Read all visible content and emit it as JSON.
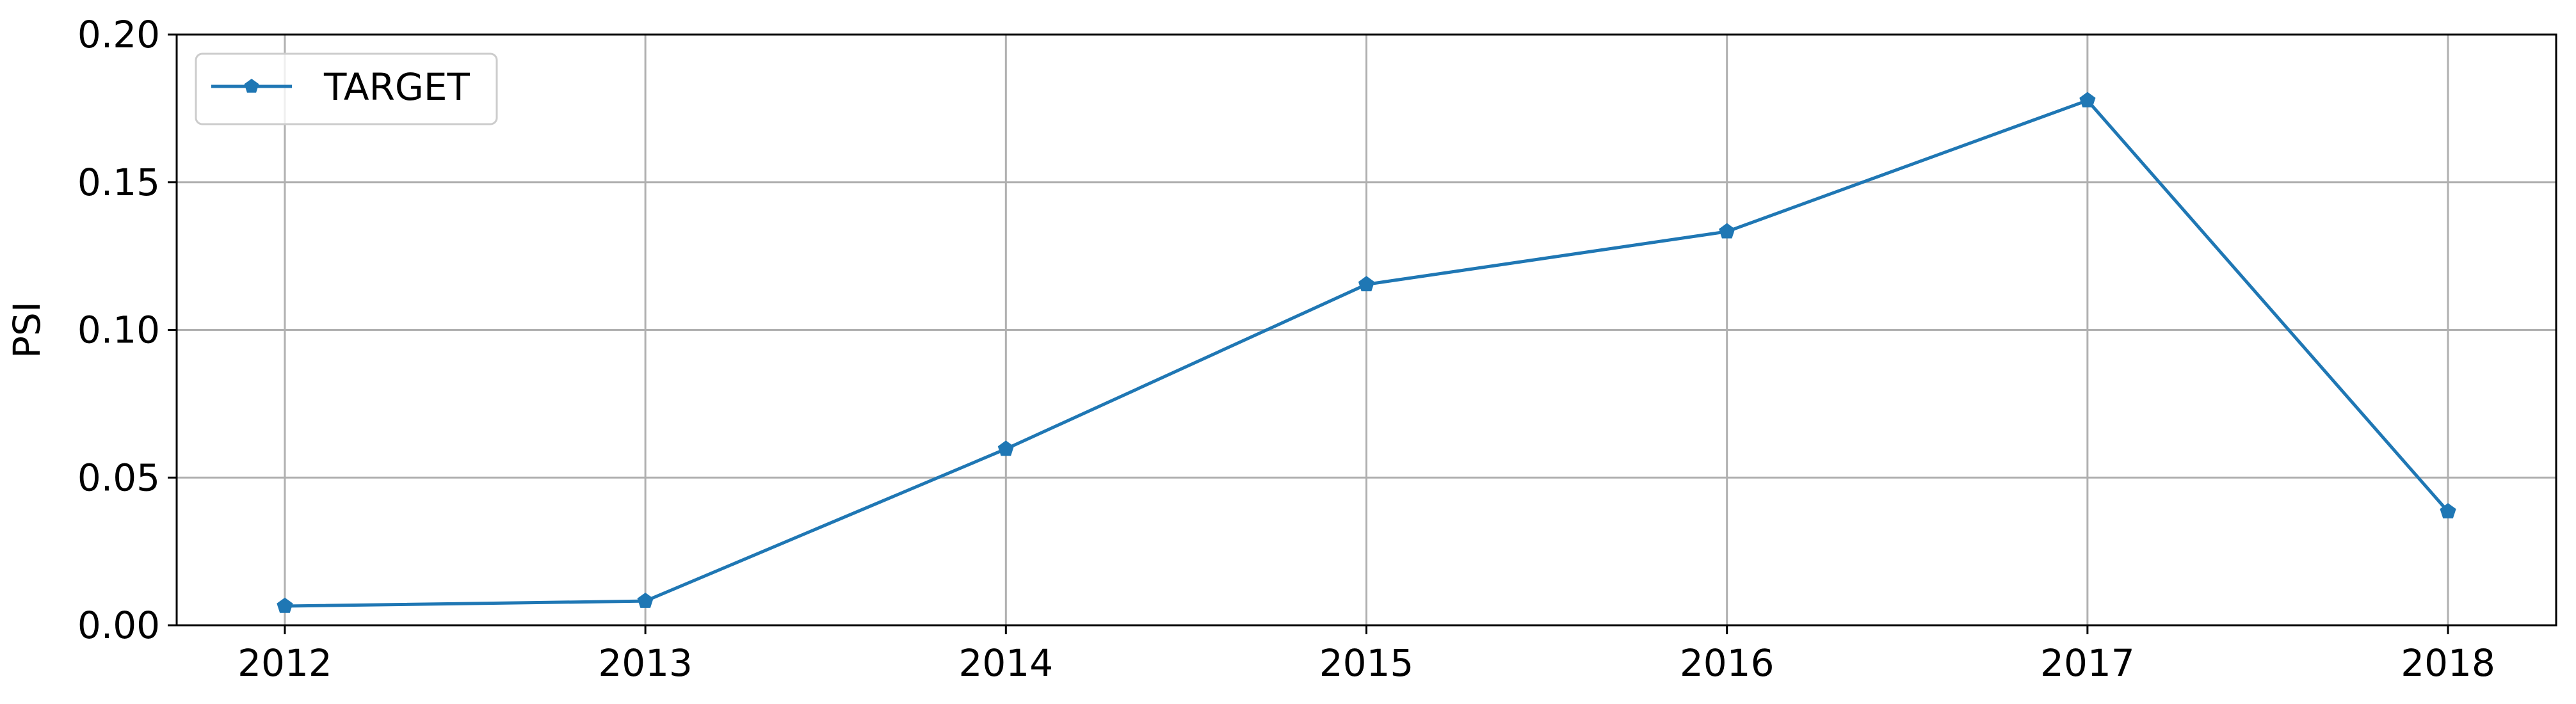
{
  "chart_data": {
    "type": "line",
    "title": "",
    "xlabel": "",
    "ylabel": "PSI",
    "x": [
      2012,
      2013,
      2014,
      2015,
      2016,
      2017,
      2018
    ],
    "series": [
      {
        "name": "TARGET",
        "values": [
          0.0065,
          0.0082,
          0.0597,
          0.1154,
          0.1333,
          0.1777,
          0.0385
        ],
        "color": "#1f77b4",
        "marker": "pentagon"
      }
    ],
    "xlim": [
      2011.7,
      2018.3
    ],
    "ylim": [
      0.0,
      0.2
    ],
    "x_ticks": [
      "2012",
      "2013",
      "2014",
      "2015",
      "2016",
      "2017",
      "2018"
    ],
    "y_ticks": [
      "0.00",
      "0.05",
      "0.10",
      "0.15",
      "0.20"
    ],
    "grid": true,
    "legend_position": "top-left"
  }
}
